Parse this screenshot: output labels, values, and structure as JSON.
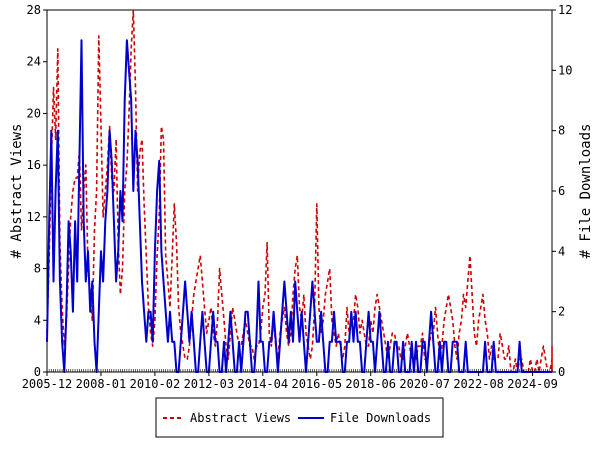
{
  "chart_data": {
    "type": "line",
    "x_ticks": [
      "2005-12",
      "2008-01",
      "2010-02",
      "2012-03",
      "2014-04",
      "2016-05",
      "2018-06",
      "2020-07",
      "2022-08",
      "2024-09"
    ],
    "x_range": [
      "2005-12",
      "2025-06"
    ],
    "ylabel_left": "# Abstract Views",
    "ylabel_right": "# File Downloads",
    "ylim_left": [
      0,
      28
    ],
    "ylim_right": [
      0,
      12
    ],
    "yticks_left": [
      0,
      4,
      8,
      12,
      16,
      20,
      24,
      28
    ],
    "yticks_right": [
      0,
      2,
      4,
      6,
      8,
      10,
      12
    ],
    "legend_position": "bottom-center",
    "grid": false,
    "series": [
      {
        "name": "Abstract Views",
        "axis": "left",
        "color": "#cc0000",
        "style": "dashed",
        "step_months": 1,
        "values": [
          3,
          9,
          16,
          22,
          18,
          25,
          10,
          5,
          2,
          4,
          8,
          12,
          14,
          15,
          15,
          17,
          11,
          14,
          16,
          8,
          6,
          4,
          11,
          14,
          26,
          19,
          12,
          14,
          16,
          19,
          15,
          14,
          18,
          10,
          6,
          8,
          14,
          16,
          20,
          25,
          28,
          22,
          14,
          17,
          18,
          13,
          9,
          5,
          3,
          2,
          4,
          9,
          12,
          19,
          18,
          9,
          7,
          5,
          9,
          13,
          10,
          5,
          3,
          2,
          1,
          1,
          2,
          4,
          6,
          7,
          8,
          9,
          7,
          5,
          3,
          4,
          5,
          3,
          2,
          4,
          8,
          6,
          4,
          2,
          1,
          3,
          5,
          4,
          3,
          2,
          2,
          3,
          4,
          3,
          2,
          2,
          1,
          2,
          2,
          3,
          5,
          6,
          10,
          3,
          2,
          4,
          2,
          1,
          3,
          4,
          5,
          3,
          2,
          3,
          6,
          8,
          9,
          5,
          4,
          6,
          3,
          2,
          1,
          2,
          5,
          13,
          5,
          3,
          4,
          6,
          7,
          8,
          4,
          3,
          2,
          3,
          2,
          1,
          2,
          5,
          3,
          4,
          4,
          6,
          5,
          3,
          4,
          3,
          2,
          2,
          4,
          3,
          5,
          6,
          5,
          4,
          3,
          2,
          1,
          2,
          3,
          3,
          2,
          2,
          1,
          1,
          2,
          3,
          2,
          1,
          1,
          1,
          2,
          2,
          3,
          1,
          1,
          2,
          3,
          3,
          5,
          3,
          1,
          2,
          4,
          5,
          6,
          5,
          4,
          2,
          1,
          3,
          4,
          6,
          5,
          7,
          9,
          6,
          3,
          2,
          4,
          5,
          6,
          4,
          3,
          1,
          2,
          1,
          1,
          1,
          3,
          2,
          1,
          1,
          2,
          0,
          0,
          1,
          0,
          1,
          1,
          0,
          0,
          0,
          1,
          0,
          0,
          1,
          0,
          1,
          2,
          1,
          0,
          0,
          1,
          0,
          1,
          1,
          0,
          0,
          1,
          0,
          1,
          0,
          0,
          1,
          1,
          0,
          1,
          2,
          0,
          1,
          1,
          2
        ]
      },
      {
        "name": "File Downloads",
        "axis": "right",
        "color": "#0000cc",
        "style": "solid",
        "step_months": 1,
        "values": [
          1,
          5,
          8,
          3,
          6,
          8,
          3,
          1,
          0,
          2,
          5,
          4,
          2,
          5,
          3,
          7,
          11,
          5,
          3,
          4,
          2,
          3,
          1,
          0,
          2,
          4,
          3,
          5,
          6,
          8,
          7,
          5,
          3,
          4,
          6,
          5,
          9,
          11,
          10,
          9,
          6,
          8,
          7,
          5,
          3,
          2,
          1,
          2,
          2,
          1,
          4,
          6,
          7,
          4,
          3,
          2,
          1,
          2,
          1,
          1,
          0,
          0,
          1,
          2,
          3,
          2,
          1,
          2,
          1,
          0,
          0,
          1,
          2,
          1,
          0,
          0,
          1,
          2,
          1,
          1,
          0,
          0,
          1,
          0,
          1,
          2,
          1,
          0,
          0,
          1,
          0,
          1,
          2,
          2,
          1,
          0,
          0,
          1,
          3,
          1,
          1,
          0,
          0,
          1,
          1,
          2,
          1,
          0,
          1,
          2,
          3,
          2,
          1,
          2,
          1,
          3,
          2,
          1,
          2,
          1,
          0,
          1,
          2,
          3,
          2,
          1,
          1,
          2,
          1,
          0,
          0,
          1,
          1,
          2,
          1,
          1,
          1,
          0,
          0,
          1,
          1,
          2,
          1,
          2,
          1,
          1,
          0,
          0,
          1,
          2,
          1,
          1,
          0,
          1,
          2,
          1,
          0,
          0,
          1,
          0,
          0,
          1,
          1,
          0,
          0,
          1,
          0,
          0,
          0,
          1,
          0,
          1,
          0,
          0,
          1,
          1,
          0,
          1,
          2,
          1,
          0,
          0,
          1,
          0,
          1,
          1,
          0,
          0,
          1,
          1,
          1,
          0,
          0,
          0,
          1,
          0,
          0,
          0,
          0,
          0,
          0,
          0,
          0,
          1,
          0,
          0,
          0,
          1,
          0,
          0,
          0,
          0,
          0,
          0,
          0,
          0,
          0,
          0,
          0,
          1,
          0,
          0,
          0,
          0,
          0,
          0,
          0,
          0,
          0,
          0,
          0,
          0,
          0,
          0,
          0,
          0,
          0,
          0,
          0,
          0,
          0,
          0,
          0,
          0,
          0,
          0,
          0,
          0,
          0,
          0,
          0,
          0,
          0
        ]
      }
    ]
  }
}
